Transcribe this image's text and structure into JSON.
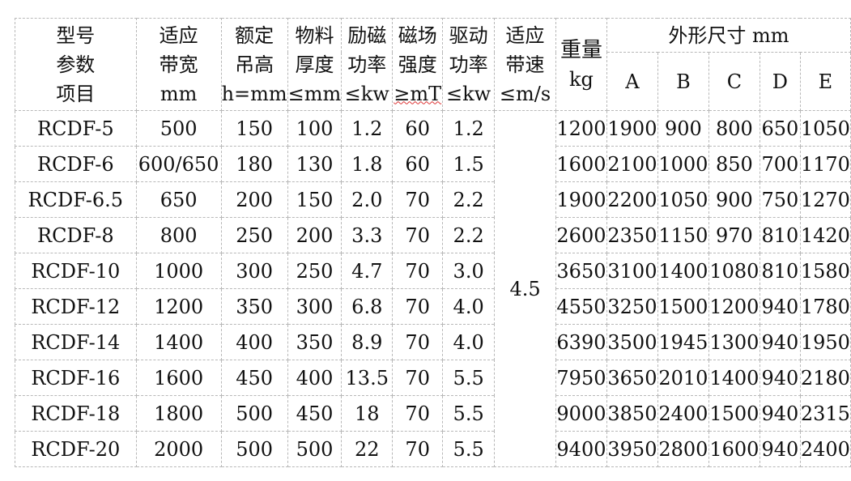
{
  "header": {
    "model": [
      "型号",
      "参数",
      "项目"
    ],
    "belt_width": [
      "适应",
      "带宽",
      "mm"
    ],
    "lift_height": [
      "额定",
      "吊高",
      "h=mm"
    ],
    "material_thickness": [
      "物料",
      "厚度",
      "≤mm"
    ],
    "excitation_power": [
      "励磁",
      "功率",
      "≤kw"
    ],
    "field_strength": [
      "磁场",
      "强度",
      "≥mT"
    ],
    "drive_power": [
      "驱动",
      "功率",
      "≤kw"
    ],
    "belt_speed": [
      "适应",
      "带速",
      "≤m/s"
    ],
    "weight": [
      "重量",
      "kg"
    ],
    "dimensions": "外形尺寸 mm",
    "dim_cols": [
      "A",
      "B",
      "C",
      "D",
      "E"
    ]
  },
  "belt_speed_value": "4.5",
  "rows": [
    [
      "RCDF-5",
      "500",
      "150",
      "100",
      "1.2",
      "60",
      "1.2",
      "1200",
      "1900",
      "900",
      "800",
      "650",
      "1050"
    ],
    [
      "RCDF-6",
      "600/650",
      "180",
      "130",
      "1.8",
      "60",
      "1.5",
      "1600",
      "2100",
      "1000",
      "850",
      "700",
      "1170"
    ],
    [
      "RCDF-6.5",
      "650",
      "200",
      "150",
      "2.0",
      "70",
      "2.2",
      "1900",
      "2200",
      "1050",
      "900",
      "750",
      "1270"
    ],
    [
      "RCDF-8",
      "800",
      "250",
      "200",
      "3.3",
      "70",
      "2.2",
      "2600",
      "2350",
      "1150",
      "970",
      "810",
      "1420"
    ],
    [
      "RCDF-10",
      "1000",
      "300",
      "250",
      "4.7",
      "70",
      "3.0",
      "3650",
      "3100",
      "1400",
      "1080",
      "810",
      "1580"
    ],
    [
      "RCDF-12",
      "1200",
      "350",
      "300",
      "6.8",
      "70",
      "4.0",
      "4550",
      "3250",
      "1500",
      "1200",
      "940",
      "1780"
    ],
    [
      "RCDF-14",
      "1400",
      "400",
      "350",
      "8.9",
      "70",
      "4.0",
      "6390",
      "3500",
      "1945",
      "1300",
      "940",
      "1950"
    ],
    [
      "RCDF-16",
      "1600",
      "450",
      "400",
      "13.5",
      "70",
      "5.5",
      "7950",
      "3650",
      "2010",
      "1400",
      "940",
      "2180"
    ],
    [
      "RCDF-18",
      "1800",
      "500",
      "450",
      "18",
      "70",
      "5.5",
      "9000",
      "3850",
      "2400",
      "1500",
      "940",
      "2315"
    ],
    [
      "RCDF-20",
      "2000",
      "500",
      "500",
      "22",
      "70",
      "5.5",
      "9400",
      "3950",
      "2800",
      "1600",
      "940",
      "2400"
    ]
  ]
}
